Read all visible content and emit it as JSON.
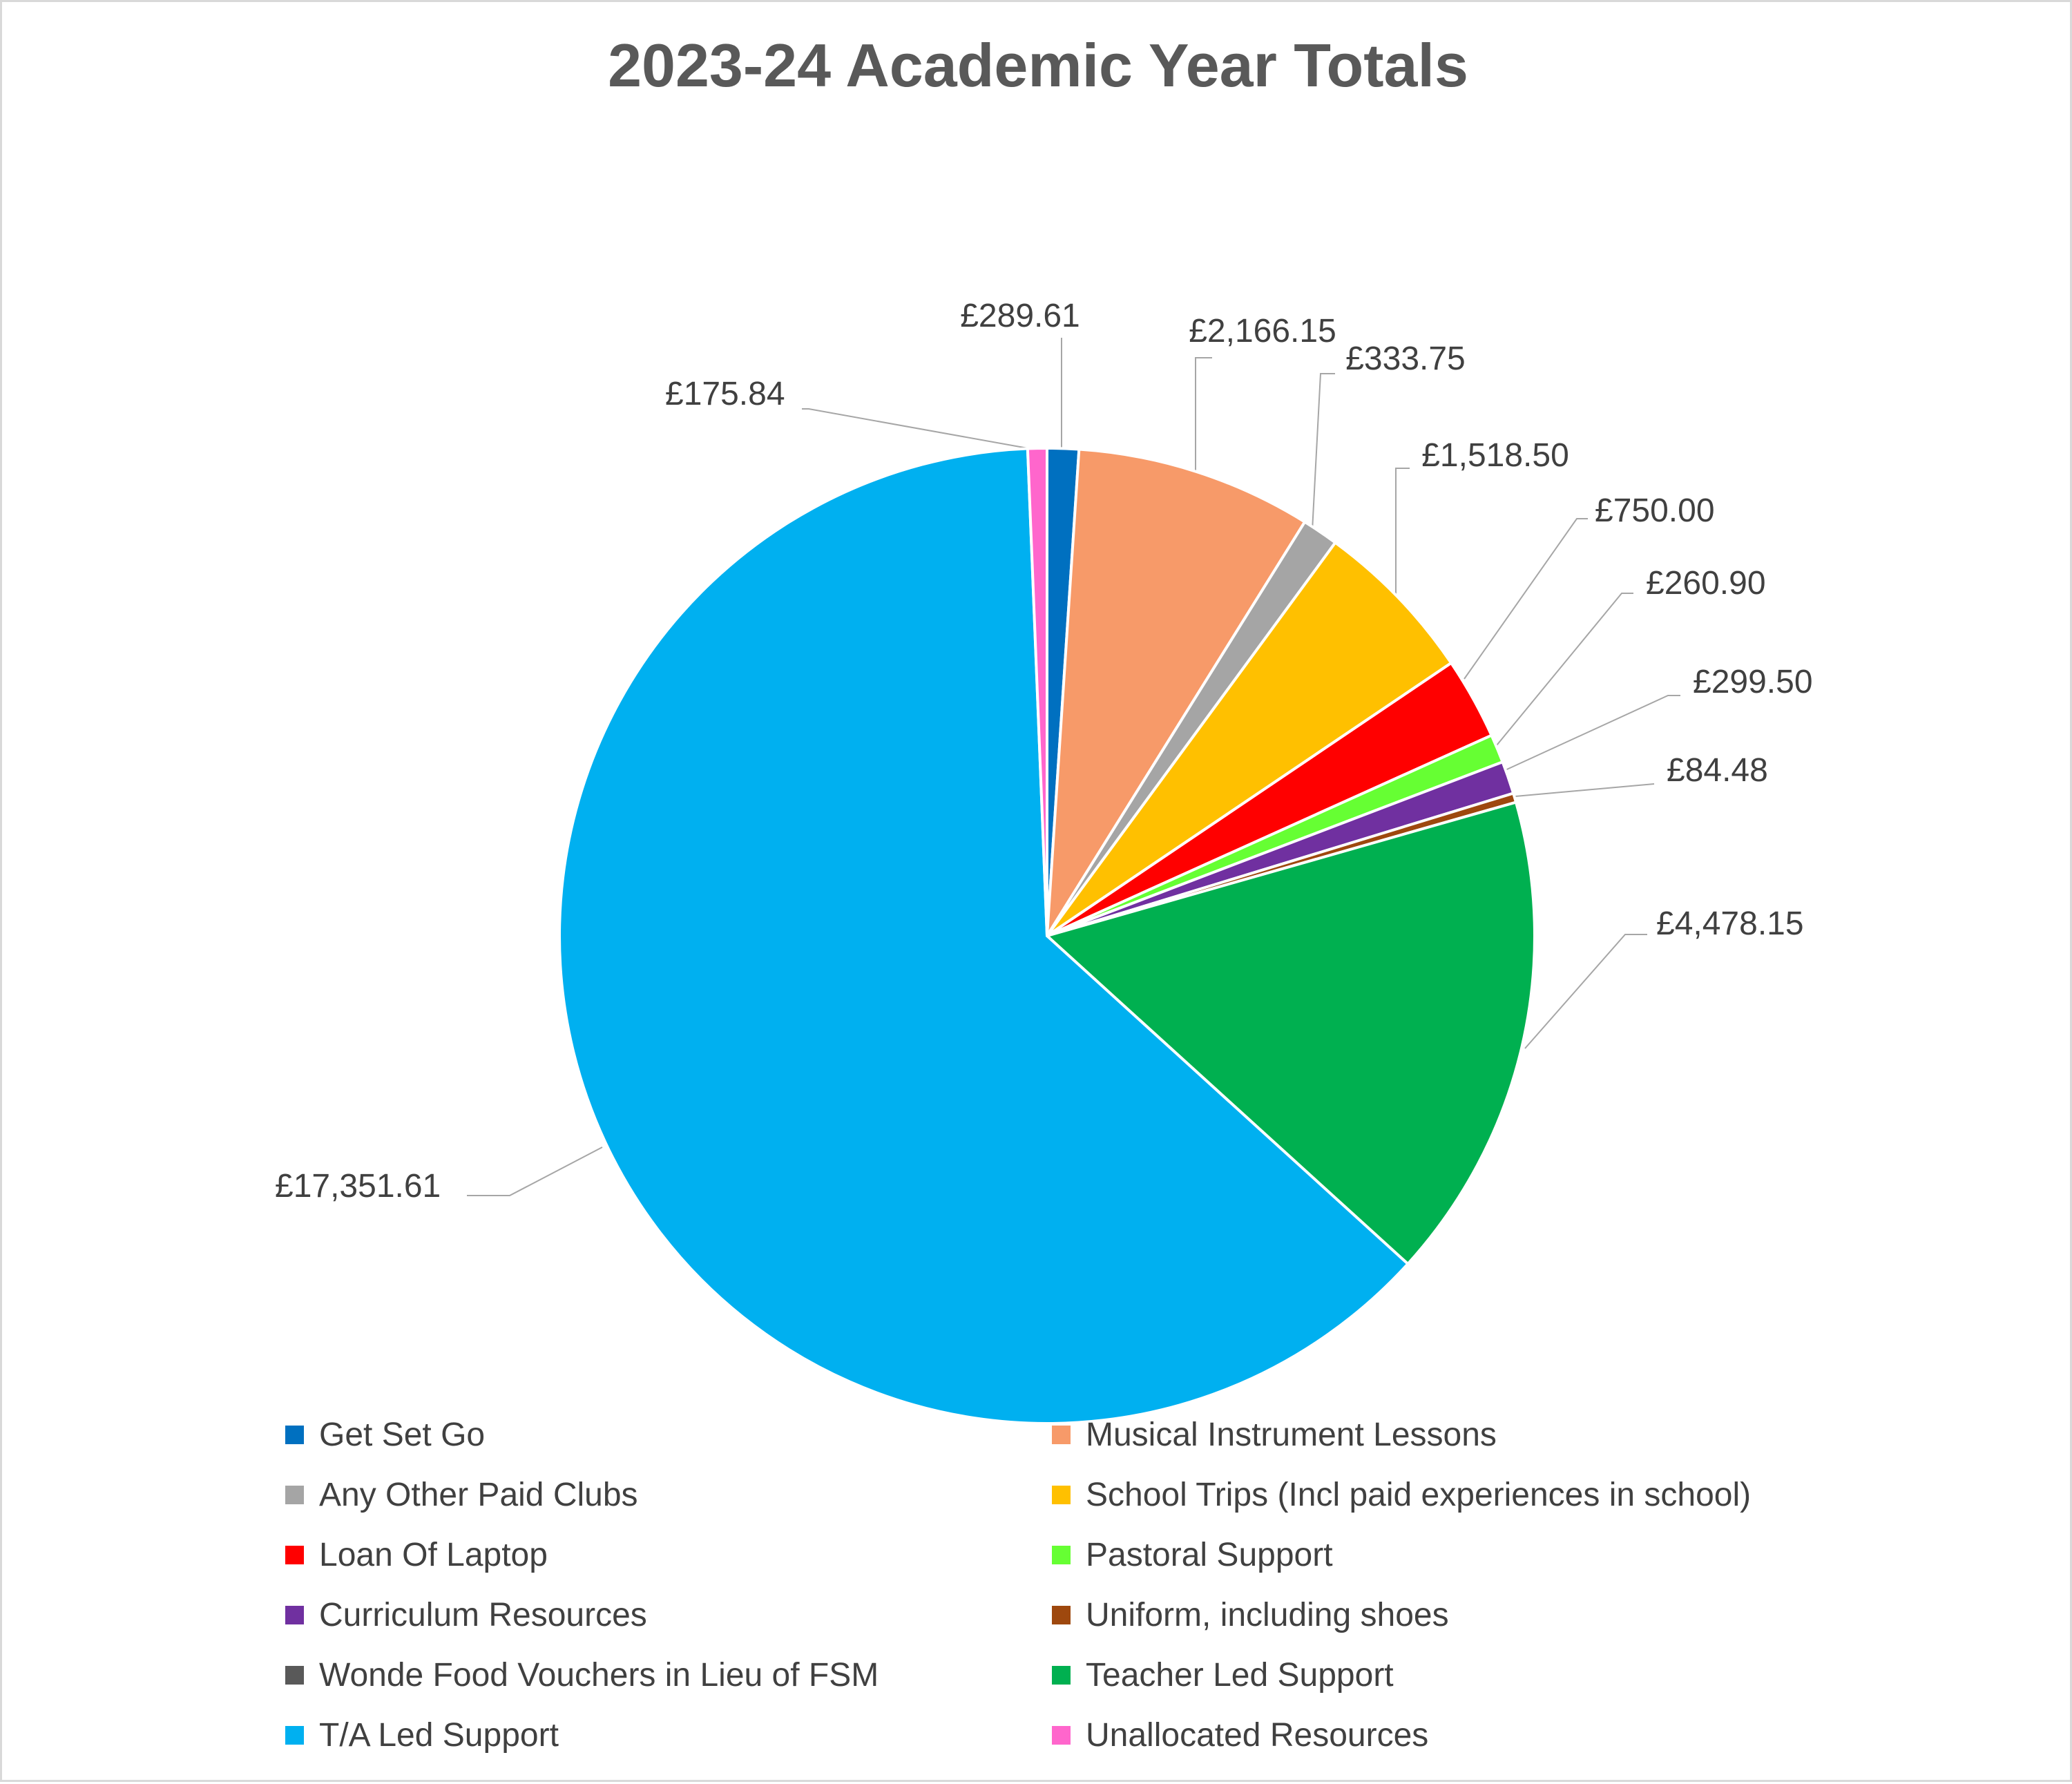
{
  "chart_data": {
    "type": "pie",
    "title": "2023-24 Academic Year Totals",
    "legend_position": "bottom",
    "start_angle_deg": 0,
    "direction": "clockwise",
    "slices": [
      {
        "name": "Get Set Go",
        "value": 289.61,
        "label": "£289.61",
        "color": "#0070C0"
      },
      {
        "name": "Musical Instrument Lessons",
        "value": 2166.15,
        "label": "£2,166.15",
        "color": "#F79A69"
      },
      {
        "name": "Any Other Paid Clubs",
        "value": 333.75,
        "label": "£333.75",
        "color": "#A5A5A5"
      },
      {
        "name": "School Trips (Incl paid experiences in school)",
        "value": 1518.5,
        "label": "£1,518.50",
        "color": "#FFC000"
      },
      {
        "name": "Loan Of Laptop",
        "value": 750.0,
        "label": "£750.00",
        "color": "#FF0000"
      },
      {
        "name": "Pastoral Support",
        "value": 260.9,
        "label": "£260.90",
        "color": "#66FF33"
      },
      {
        "name": "Curriculum Resources",
        "value": 299.5,
        "label": "£299.50",
        "color": "#7030A0"
      },
      {
        "name": "Uniform, including shoes",
        "value": 84.48,
        "label": "£84.48",
        "color": "#9E480E"
      },
      {
        "name": "Wonde Food Vouchers in Lieu of FSM",
        "value": 0,
        "label": "",
        "color": "#595959"
      },
      {
        "name": "Teacher Led Support",
        "value": 4478.15,
        "label": "£4,478.15",
        "color": "#00B050"
      },
      {
        "name": "T/A Led Support",
        "value": 17351.61,
        "label": "£17,351.61",
        "color": "#00B0F0"
      },
      {
        "name": "Unallocated Resources",
        "value": 175.84,
        "label": "£175.84",
        "color": "#FF66CC"
      }
    ]
  }
}
